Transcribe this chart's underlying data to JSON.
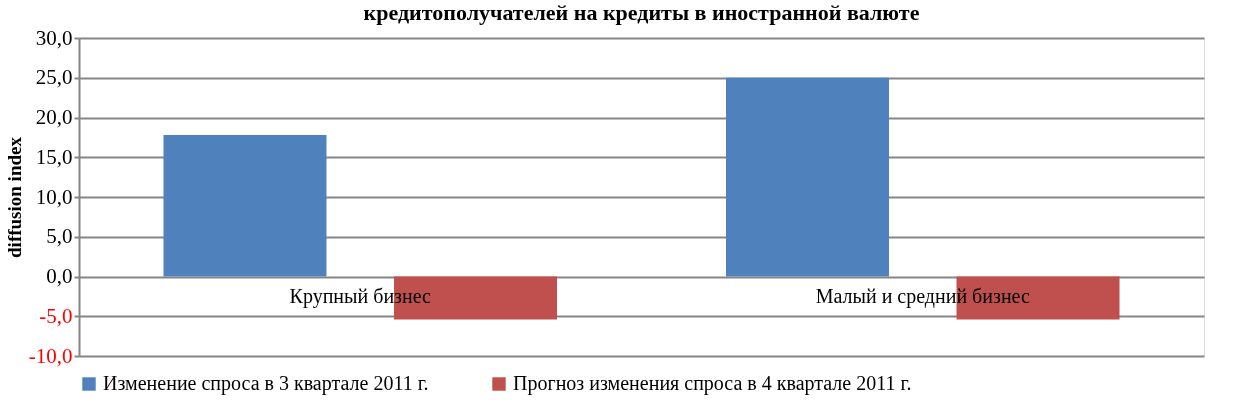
{
  "chart_data": {
    "type": "bar",
    "title": "кредитополучателей на кредиты в иностранной валюте",
    "ylabel": "diffusion index",
    "categories": [
      "Крупный бизнес",
      "Малый и средний бизнес"
    ],
    "series": [
      {
        "name": "Изменение спроса в 3 квартале 2011 г.",
        "color": "#4f81bd",
        "values": [
          17.8,
          25.0
        ]
      },
      {
        "name": "Прогноз изменения спроса в 4 квартале 2011 г.",
        "color": "#c0504d",
        "values": [
          -5.4,
          -5.4
        ]
      }
    ],
    "ylim": [
      -10,
      30
    ],
    "yticks": [
      {
        "value": -10,
        "label": "-10,0"
      },
      {
        "value": -5,
        "label": "-5,0"
      },
      {
        "value": 0,
        "label": "0,0"
      },
      {
        "value": 5,
        "label": "5,0"
      },
      {
        "value": 10,
        "label": "10,0"
      },
      {
        "value": 15,
        "label": "15,0"
      },
      {
        "value": 20,
        "label": "20,0"
      },
      {
        "value": 25,
        "label": "25,0"
      },
      {
        "value": 30,
        "label": "30,0"
      }
    ],
    "grid": "y",
    "legend": "bottom"
  }
}
